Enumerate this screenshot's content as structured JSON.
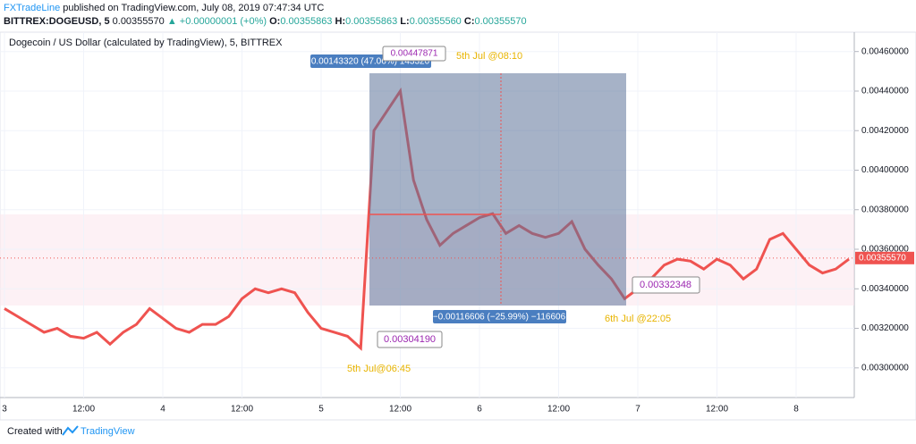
{
  "header": {
    "author": "FXTradeLine",
    "published": "published on TradingView.com, July 08, 2019 07:47:34 UTC"
  },
  "ticker": {
    "symbol": "BITTREX:DOGEUSD, 5",
    "price": "0.00355570",
    "change": "▲ +0.00000001 (+0%)",
    "o_label": "O:",
    "o": "0.00355863",
    "h_label": "H:",
    "h": "0.00355863",
    "l_label": "L:",
    "l": "0.00355560",
    "c_label": "C:",
    "c": "0.00355570"
  },
  "chart_data": {
    "type": "line",
    "title": "Dogecoin / US Dollar (calculated by TradingView), 5, BITTREX",
    "categories": [
      "3",
      null,
      null,
      null,
      null,
      null,
      "12:00",
      null,
      null,
      null,
      null,
      null,
      "4",
      null,
      null,
      null,
      null,
      null,
      "12:00",
      null,
      null,
      null,
      null,
      null,
      "5",
      null,
      null,
      null,
      null,
      null,
      "12:00",
      null,
      null,
      null,
      null,
      null,
      "6",
      null,
      null,
      null,
      null,
      null,
      "12:00",
      null,
      null,
      null,
      null,
      null,
      "7",
      null,
      null,
      null,
      null,
      null,
      "12:00",
      null,
      null,
      null,
      null,
      null,
      "8",
      null,
      null,
      null,
      null
    ],
    "values": [
      0.0033,
      0.00326,
      0.00322,
      0.00318,
      0.0032,
      0.00316,
      0.00315,
      0.00318,
      0.00312,
      0.00318,
      0.00322,
      0.0033,
      0.00325,
      0.0032,
      0.00318,
      0.00322,
      0.00322,
      0.00326,
      0.00335,
      0.0034,
      0.00338,
      0.0034,
      0.00338,
      0.00328,
      0.0032,
      0.00318,
      0.00316,
      0.0031,
      0.0042,
      0.0043,
      0.0044,
      0.00395,
      0.00375,
      0.00362,
      0.00368,
      0.00372,
      0.00376,
      0.00378,
      0.00368,
      0.00372,
      0.00368,
      0.00366,
      0.00368,
      0.00374,
      0.0036,
      0.00352,
      0.00345,
      0.00335,
      0.0034,
      0.00345,
      0.00352,
      0.00355,
      0.00354,
      0.0035,
      0.00355,
      0.00352,
      0.00345,
      0.0035,
      0.00365,
      0.00368,
      0.0036,
      0.00352,
      0.00348,
      0.0035,
      0.00355
    ],
    "color": "#ef5350",
    "ylim": [
      0.00285,
      0.00468
    ],
    "yticks": [
      {
        "value": 0.003,
        "label": "0.00300000"
      },
      {
        "value": 0.0032,
        "label": "0.00320000"
      },
      {
        "value": 0.0034,
        "label": "0.00340000"
      },
      {
        "value": 0.0036,
        "label": "0.00360000"
      },
      {
        "value": 0.0038,
        "label": "0.00380000"
      },
      {
        "value": 0.004,
        "label": "0.00400000"
      },
      {
        "value": 0.0042,
        "label": "0.00420000"
      },
      {
        "value": 0.0044,
        "label": "0.00440000"
      },
      {
        "value": 0.0046,
        "label": "0.00460000"
      }
    ],
    "grid": true,
    "last_price": {
      "value": 0.0035557,
      "label": "0.00355570"
    },
    "annotations": {
      "measure_up": "0.00143320 (47.06%) 143320",
      "high_price": "0.00447871",
      "high_time": "5th Jul @08:10",
      "measure_down": "−0.00116606 (−25.99%) −116606",
      "low_price": "0.00332348",
      "low_time": "6th Jul @22:05",
      "start_price": "0.00304190",
      "start_time": "5th Jul@06:45"
    }
  },
  "footer": {
    "text": "Created with",
    "brand": "TradingView"
  }
}
